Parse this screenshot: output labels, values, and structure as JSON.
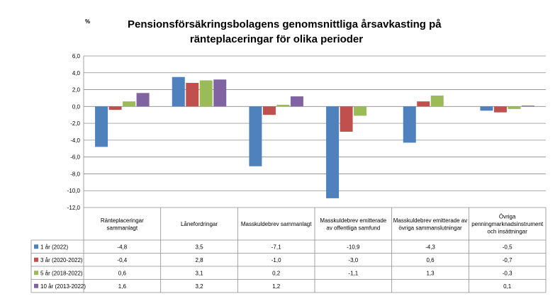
{
  "chart_data": {
    "type": "bar",
    "unit_label": "%",
    "title": [
      "Pensionsförsäkringsbolagens genomsnittliga årsavkasting på",
      "ränteplaceringar för olika perioder"
    ],
    "categories": [
      [
        "Ränteplaceringar",
        "sammanlagt"
      ],
      [
        "Lånefordringar"
      ],
      [
        "Masskuldebrev sammanlagt"
      ],
      [
        "Masskuldebrev emitterade",
        "av offentliga samfund"
      ],
      [
        "Masskuldebrev emitterade av",
        "övriga sammanslutningar"
      ],
      [
        "Övriga",
        "penningmarknadsinstrument",
        "och insättningar"
      ]
    ],
    "ylim": [
      -12,
      6
    ],
    "ytick_step": 2,
    "ytick_labels": [
      "6,0",
      "4,0",
      "2,0",
      "0,0",
      "-2,0",
      "-4,0",
      "-6,0",
      "-8,0",
      "-10,0",
      "-12,0"
    ],
    "gridlines": true,
    "data_table": true,
    "series": [
      {
        "name": "1 år (2022)",
        "color": "#4F81BD",
        "values": [
          -4.8,
          3.5,
          -7.1,
          -10.9,
          -4.3,
          -0.5
        ],
        "labels": [
          "-4,8",
          "3,5",
          "-7,1",
          "-10,9",
          "-4,3",
          "-0,5"
        ]
      },
      {
        "name": "3 år (2020-2022)",
        "color": "#C0504D",
        "values": [
          -0.4,
          2.8,
          -1.0,
          -3.0,
          0.6,
          -0.7
        ],
        "labels": [
          "-0,4",
          "2,8",
          "-1,0",
          "-3,0",
          "0,6",
          "-0,7"
        ]
      },
      {
        "name": "5 år (2018-2022)",
        "color": "#9BBB59",
        "values": [
          0.6,
          3.1,
          0.2,
          -1.1,
          1.3,
          -0.3
        ],
        "labels": [
          "0,6",
          "3,1",
          "0,2",
          "-1,1",
          "1,3",
          "-0,3"
        ]
      },
      {
        "name": "10 år (2013-2022)",
        "color": "#8064A2",
        "values": [
          1.6,
          3.2,
          1.2,
          null,
          null,
          0.1
        ],
        "labels": [
          "1,6",
          "3,2",
          "1,2",
          "",
          "",
          "0,1"
        ]
      }
    ]
  }
}
